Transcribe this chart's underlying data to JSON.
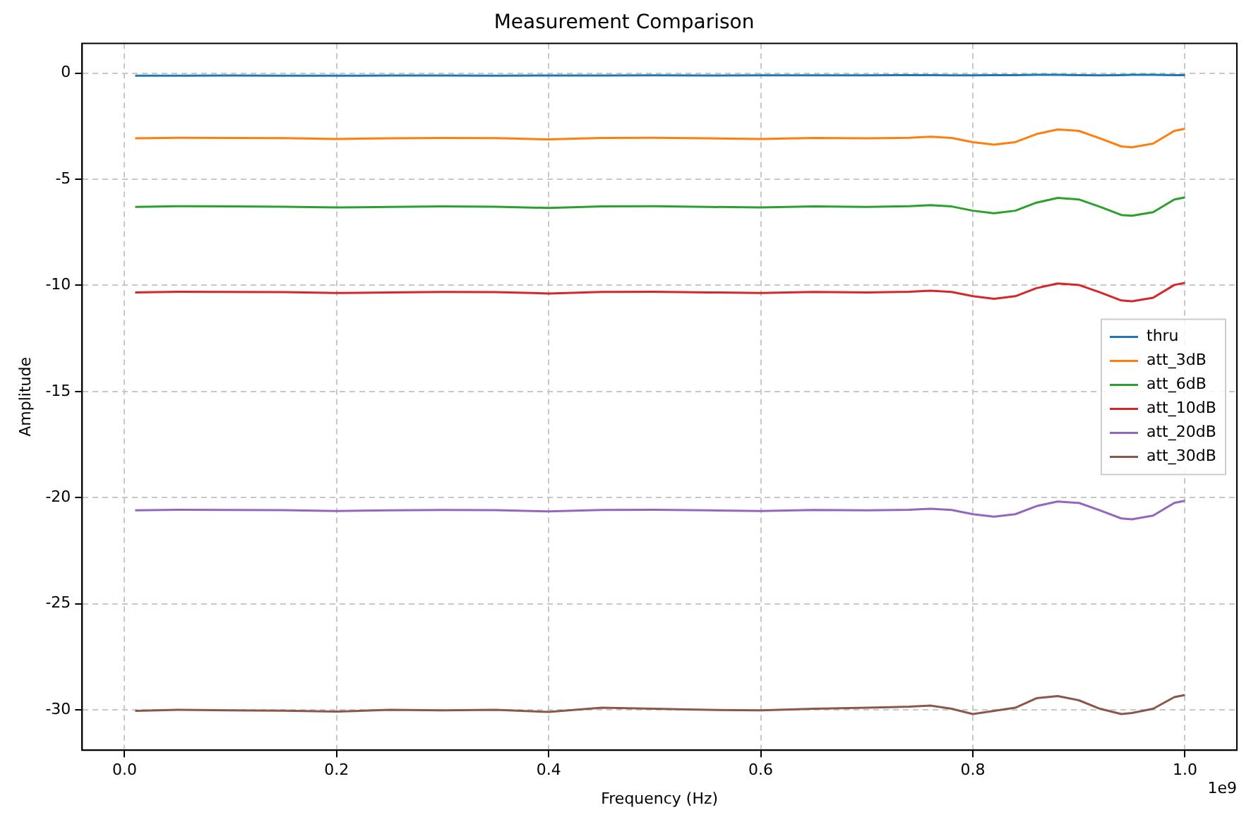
{
  "chart_data": {
    "type": "line",
    "title": "Measurement Comparison",
    "xlabel": "Frequency (Hz)",
    "ylabel": "Amplitude",
    "annotations": [
      "1e9"
    ],
    "x": [
      0.01,
      0.05,
      0.1,
      0.15,
      0.2,
      0.25,
      0.3,
      0.35,
      0.4,
      0.45,
      0.5,
      0.55,
      0.6,
      0.65,
      0.7,
      0.74,
      0.76,
      0.78,
      0.8,
      0.82,
      0.84,
      0.86,
      0.88,
      0.9,
      0.92,
      0.94,
      0.95,
      0.97,
      0.99,
      1.0
    ],
    "xlim": [
      -0.04,
      1.049
    ],
    "xticks": [
      {
        "value": 0,
        "label": "0.0"
      },
      0.2,
      0.4,
      0.6,
      0.8,
      {
        "value": 1,
        "label": "1.0"
      }
    ],
    "ylim": [
      -31.9,
      1.4
    ],
    "yticks": [
      -30,
      -25,
      -20,
      -15,
      -10,
      -5,
      0
    ],
    "grid": true,
    "legend": "right",
    "line_style": "solid",
    "marker": "none",
    "series": [
      {
        "name": "thru",
        "color": "#1f77b4",
        "values": [
          -0.12,
          -0.12,
          -0.11,
          -0.12,
          -0.12,
          -0.11,
          -0.11,
          -0.12,
          -0.11,
          -0.11,
          -0.1,
          -0.11,
          -0.1,
          -0.1,
          -0.1,
          -0.09,
          -0.09,
          -0.1,
          -0.1,
          -0.09,
          -0.09,
          -0.08,
          -0.08,
          -0.09,
          -0.1,
          -0.09,
          -0.08,
          -0.08,
          -0.09,
          -0.09
        ]
      },
      {
        "name": "att_3dB",
        "color": "#ff7f0e",
        "values": [
          -3.07,
          -3.04,
          -3.05,
          -3.06,
          -3.1,
          -3.07,
          -3.05,
          -3.06,
          -3.12,
          -3.05,
          -3.04,
          -3.07,
          -3.1,
          -3.05,
          -3.07,
          -3.04,
          -2.99,
          -3.05,
          -3.25,
          -3.37,
          -3.25,
          -2.87,
          -2.65,
          -2.72,
          -3.07,
          -3.45,
          -3.49,
          -3.32,
          -2.72,
          -2.62
        ]
      },
      {
        "name": "att_6dB",
        "color": "#2ca02c",
        "values": [
          -6.3,
          -6.27,
          -6.28,
          -6.29,
          -6.33,
          -6.3,
          -6.28,
          -6.29,
          -6.35,
          -6.28,
          -6.27,
          -6.3,
          -6.33,
          -6.28,
          -6.3,
          -6.27,
          -6.22,
          -6.28,
          -6.48,
          -6.6,
          -6.48,
          -6.1,
          -5.88,
          -5.95,
          -6.3,
          -6.68,
          -6.72,
          -6.55,
          -5.95,
          -5.85
        ]
      },
      {
        "name": "att_10dB",
        "color": "#d62728",
        "values": [
          -10.33,
          -10.3,
          -10.31,
          -10.32,
          -10.36,
          -10.33,
          -10.31,
          -10.32,
          -10.38,
          -10.31,
          -10.3,
          -10.33,
          -10.36,
          -10.31,
          -10.33,
          -10.3,
          -10.25,
          -10.31,
          -10.51,
          -10.63,
          -10.51,
          -10.13,
          -9.91,
          -9.98,
          -10.33,
          -10.71,
          -10.75,
          -10.58,
          -9.98,
          -9.88
        ]
      },
      {
        "name": "att_20dB",
        "color": "#9467bd",
        "values": [
          -20.6,
          -20.57,
          -20.58,
          -20.59,
          -20.63,
          -20.6,
          -20.58,
          -20.59,
          -20.65,
          -20.58,
          -20.57,
          -20.6,
          -20.63,
          -20.58,
          -20.6,
          -20.57,
          -20.52,
          -20.58,
          -20.78,
          -20.9,
          -20.78,
          -20.4,
          -20.18,
          -20.25,
          -20.6,
          -20.98,
          -21.02,
          -20.85,
          -20.25,
          -20.15
        ]
      },
      {
        "name": "att_30dB",
        "color": "#8c564b",
        "values": [
          -30.05,
          -30.0,
          -30.02,
          -30.04,
          -30.08,
          -30.0,
          -30.02,
          -30.0,
          -30.1,
          -29.9,
          -29.95,
          -30.0,
          -30.02,
          -29.95,
          -29.9,
          -29.85,
          -29.8,
          -29.95,
          -30.2,
          -30.05,
          -29.9,
          -29.45,
          -29.35,
          -29.55,
          -29.95,
          -30.2,
          -30.15,
          -29.95,
          -29.4,
          -29.3
        ]
      }
    ]
  }
}
